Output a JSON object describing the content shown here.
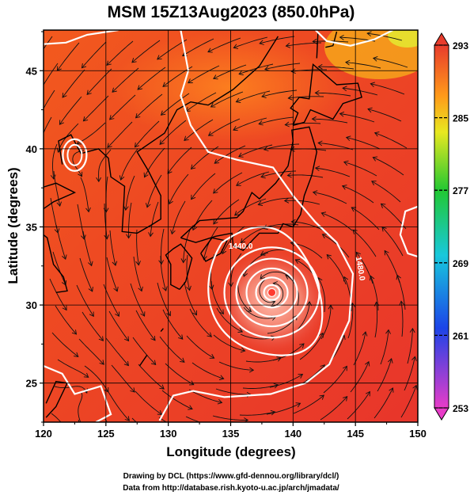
{
  "figure": {
    "title": "MSM 15Z13Aug2023 (850.0hPa)",
    "xlabel": "Longitude (degrees)",
    "ylabel": "Latitude  (degrees)",
    "credit_line1": "Drawing by DCL (https://www.gfd-dennou.org/library/dcl/)",
    "credit_line2": "Data from http://database.rish.kyoto-u.ac.jp/arch/jmadata/"
  },
  "map": {
    "lon_range": [
      120,
      150
    ],
    "lat_range": [
      22.5,
      47.6
    ],
    "lon_ticks": [
      "120",
      "125",
      "130",
      "135",
      "140",
      "145",
      "150"
    ],
    "lat_ticks": [
      "25",
      "30",
      "35",
      "40",
      "45"
    ],
    "contour_labels": [
      {
        "text": "1440.0",
        "lon": 135.8,
        "lat": 33.6
      },
      {
        "text": "1480.0",
        "lon": 145.2,
        "lat": 32.3
      }
    ],
    "cyclone_center": {
      "lon": 138.3,
      "lat": 30.8
    }
  },
  "colorbar": {
    "min": 253,
    "max": 293,
    "tick_labels": [
      "293",
      "285",
      "277",
      "269",
      "261",
      "253"
    ],
    "colors": {
      "top": "#e83c2c",
      "orange": "#ff9a1a",
      "yellow": "#e8e820",
      "green": "#22c832",
      "cyan": "#18c8dc",
      "blue": "#1c44e8",
      "bottom": "#e83cc8"
    }
  }
}
